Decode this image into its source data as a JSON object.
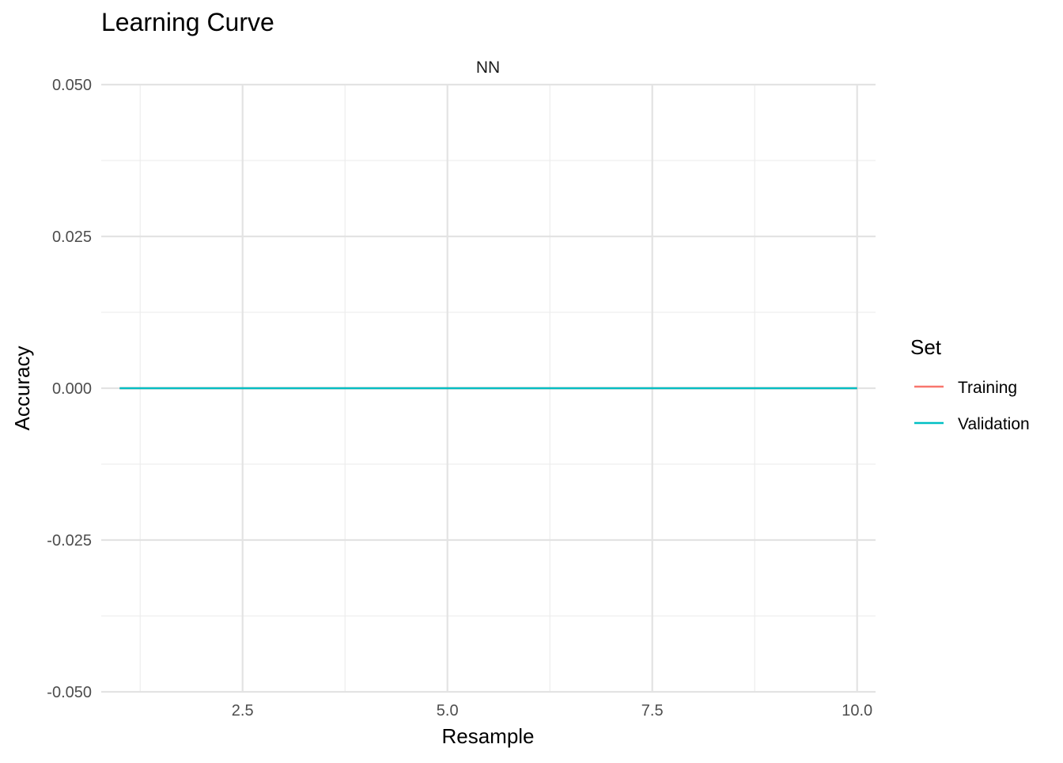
{
  "chart_data": {
    "type": "line",
    "title": "Learning Curve",
    "facet": "NN",
    "xlabel": "Resample",
    "ylabel": "Accuracy",
    "xlim": [
      0.775,
      10.225
    ],
    "ylim": [
      -0.05,
      0.05
    ],
    "x_ticks": [
      2.5,
      5.0,
      7.5,
      10.0
    ],
    "x_tick_labels": [
      "2.5",
      "5.0",
      "7.5",
      "10.0"
    ],
    "y_ticks": [
      -0.05,
      -0.025,
      0.0,
      0.025,
      0.05
    ],
    "y_tick_labels": [
      "-0.050",
      "-0.025",
      "0.000",
      "0.025",
      "0.050"
    ],
    "grid": true,
    "legend": {
      "title": "Set",
      "position": "right"
    },
    "series": [
      {
        "name": "Training",
        "color": "#F8766D",
        "x": [
          1,
          2,
          3,
          4,
          5,
          6,
          7,
          8,
          9,
          10
        ],
        "y": [
          0,
          0,
          0,
          0,
          0,
          0,
          0,
          0,
          0,
          0
        ]
      },
      {
        "name": "Validation",
        "color": "#00BFC4",
        "x": [
          1,
          2,
          3,
          4,
          5,
          6,
          7,
          8,
          9,
          10
        ],
        "y": [
          0,
          0,
          0,
          0,
          0,
          0,
          0,
          0,
          0,
          0
        ]
      }
    ]
  }
}
